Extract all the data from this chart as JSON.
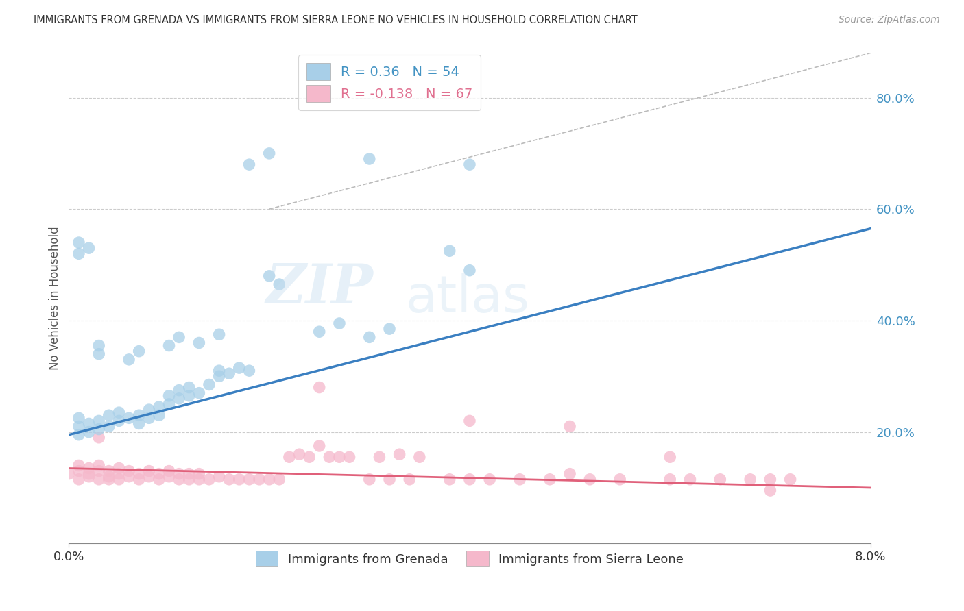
{
  "title": "IMMIGRANTS FROM GRENADA VS IMMIGRANTS FROM SIERRA LEONE NO VEHICLES IN HOUSEHOLD CORRELATION CHART",
  "source": "Source: ZipAtlas.com",
  "ylabel": "No Vehicles in Household",
  "legend1_label": "Immigrants from Grenada",
  "legend2_label": "Immigrants from Sierra Leone",
  "R1": 0.36,
  "N1": 54,
  "R2": -0.138,
  "N2": 67,
  "color_blue": "#a8cfe8",
  "color_pink": "#f5b8cb",
  "color_blue_line": "#3a7fc1",
  "color_pink_line": "#e0607a",
  "color_dashed": "#bbbbbb",
  "watermark_zip": "ZIP",
  "watermark_atlas": "atlas",
  "xlim": [
    0.0,
    0.08
  ],
  "ylim": [
    0.0,
    0.88
  ],
  "yticks": [
    0.2,
    0.4,
    0.6,
    0.8
  ],
  "ytick_labels": [
    "20.0%",
    "40.0%",
    "60.0%",
    "80.0%"
  ],
  "grenada_x": [
    0.001,
    0.001,
    0.001,
    0.002,
    0.002,
    0.003,
    0.003,
    0.004,
    0.004,
    0.005,
    0.005,
    0.006,
    0.007,
    0.007,
    0.008,
    0.008,
    0.009,
    0.009,
    0.01,
    0.01,
    0.011,
    0.011,
    0.012,
    0.012,
    0.013,
    0.014,
    0.015,
    0.015,
    0.016,
    0.017,
    0.018,
    0.02,
    0.021,
    0.025,
    0.027,
    0.03,
    0.032,
    0.038,
    0.04,
    0.001,
    0.001,
    0.002,
    0.003,
    0.003,
    0.006,
    0.007,
    0.01,
    0.011,
    0.013,
    0.015,
    0.018,
    0.02,
    0.03,
    0.04
  ],
  "grenada_y": [
    0.195,
    0.21,
    0.225,
    0.2,
    0.215,
    0.205,
    0.22,
    0.21,
    0.23,
    0.22,
    0.235,
    0.225,
    0.215,
    0.23,
    0.225,
    0.24,
    0.23,
    0.245,
    0.25,
    0.265,
    0.26,
    0.275,
    0.265,
    0.28,
    0.27,
    0.285,
    0.3,
    0.31,
    0.305,
    0.315,
    0.31,
    0.48,
    0.465,
    0.38,
    0.395,
    0.37,
    0.385,
    0.525,
    0.49,
    0.52,
    0.54,
    0.53,
    0.34,
    0.355,
    0.33,
    0.345,
    0.355,
    0.37,
    0.36,
    0.375,
    0.68,
    0.7,
    0.69,
    0.68
  ],
  "sierra_x": [
    0.0,
    0.001,
    0.001,
    0.001,
    0.002,
    0.002,
    0.002,
    0.003,
    0.003,
    0.003,
    0.004,
    0.004,
    0.004,
    0.005,
    0.005,
    0.005,
    0.006,
    0.006,
    0.007,
    0.007,
    0.008,
    0.008,
    0.009,
    0.009,
    0.01,
    0.01,
    0.011,
    0.011,
    0.012,
    0.012,
    0.013,
    0.013,
    0.014,
    0.015,
    0.016,
    0.017,
    0.018,
    0.019,
    0.02,
    0.021,
    0.022,
    0.023,
    0.024,
    0.025,
    0.026,
    0.027,
    0.028,
    0.03,
    0.031,
    0.032,
    0.033,
    0.034,
    0.035,
    0.038,
    0.04,
    0.042,
    0.045,
    0.048,
    0.05,
    0.052,
    0.055,
    0.06,
    0.062,
    0.065,
    0.068,
    0.07,
    0.072
  ],
  "sierra_y": [
    0.125,
    0.13,
    0.115,
    0.14,
    0.12,
    0.135,
    0.125,
    0.115,
    0.13,
    0.14,
    0.12,
    0.13,
    0.115,
    0.125,
    0.115,
    0.135,
    0.12,
    0.13,
    0.115,
    0.125,
    0.12,
    0.13,
    0.115,
    0.125,
    0.12,
    0.13,
    0.115,
    0.125,
    0.115,
    0.125,
    0.115,
    0.125,
    0.115,
    0.12,
    0.115,
    0.115,
    0.115,
    0.115,
    0.115,
    0.115,
    0.155,
    0.16,
    0.155,
    0.175,
    0.155,
    0.155,
    0.155,
    0.115,
    0.155,
    0.115,
    0.16,
    0.115,
    0.155,
    0.115,
    0.115,
    0.115,
    0.115,
    0.115,
    0.125,
    0.115,
    0.115,
    0.115,
    0.115,
    0.115,
    0.115,
    0.115,
    0.115
  ],
  "sierra_outliers_x": [
    0.003,
    0.025,
    0.04,
    0.05,
    0.06,
    0.07
  ],
  "sierra_outliers_y": [
    0.19,
    0.28,
    0.22,
    0.21,
    0.155,
    0.095
  ],
  "blue_line_x0": 0.0,
  "blue_line_y0": 0.195,
  "blue_line_x1": 0.08,
  "blue_line_y1": 0.565,
  "pink_line_x0": 0.0,
  "pink_line_y0": 0.135,
  "pink_line_x1": 0.08,
  "pink_line_y1": 0.1
}
